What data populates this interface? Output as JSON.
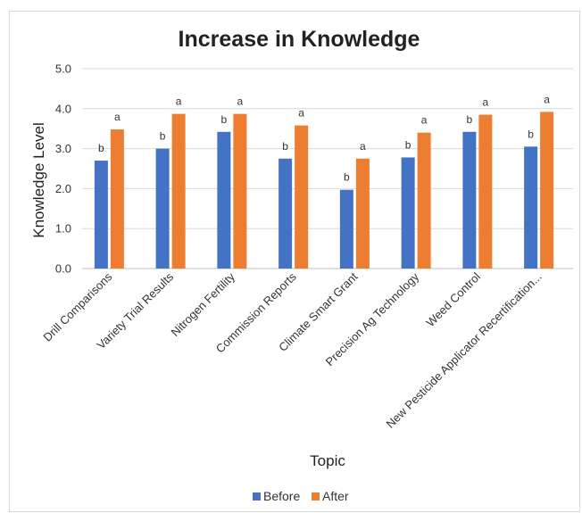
{
  "chart_data": {
    "type": "bar",
    "title": "Increase in Knowledge",
    "xlabel": "Topic",
    "ylabel": "Knowledge Level",
    "ylim": [
      0,
      5
    ],
    "yticks": [
      "0.0",
      "1.0",
      "2.0",
      "3.0",
      "4.0",
      "5.0"
    ],
    "grid": true,
    "legend_position": "bottom",
    "categories": [
      "Drill Comparisons",
      "Variety Trial Results",
      "Nitrogen Fertility",
      "Commission Reports",
      "Climate Smart Grant",
      "Precision Ag Technology",
      "Weed Control",
      "New Pesticide Applicator Recertification..."
    ],
    "series": [
      {
        "name": "Before",
        "color": "#4472c4",
        "values": [
          2.7,
          3.0,
          3.42,
          2.75,
          1.97,
          2.78,
          3.42,
          3.05
        ],
        "labels": [
          "b",
          "b",
          "b",
          "b",
          "b",
          "b",
          "b",
          "b"
        ]
      },
      {
        "name": "After",
        "color": "#ed7d31",
        "values": [
          3.48,
          3.87,
          3.87,
          3.58,
          2.75,
          3.4,
          3.85,
          3.92
        ],
        "labels": [
          "a",
          "a",
          "a",
          "a",
          "a",
          "a",
          "a",
          "a"
        ]
      }
    ]
  }
}
